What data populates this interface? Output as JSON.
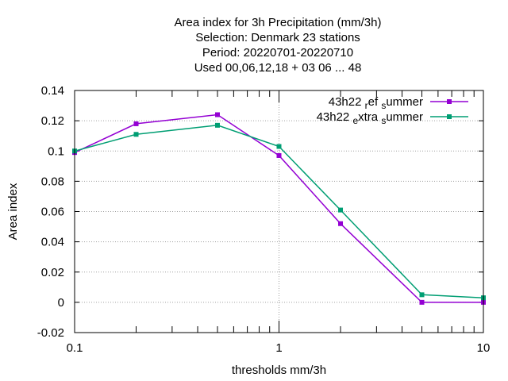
{
  "chart_data": {
    "type": "line",
    "title_lines": [
      "Area index  for 3h Precipitation (mm/3h)",
      "Selection: Denmark     23 stations",
      "Period: 20220701-20220710",
      "Used  00,06,12,18  + 03 06 ... 48"
    ],
    "xlabel": "thresholds mm/3h",
    "ylabel": "Area index",
    "x_scale": "log",
    "xlim": [
      0.1,
      10
    ],
    "ylim": [
      -0.02,
      0.14
    ],
    "x_ticks": [
      0.1,
      1,
      10
    ],
    "x_tick_labels": [
      "0.1",
      "1",
      "10"
    ],
    "y_ticks": [
      -0.02,
      0,
      0.02,
      0.04,
      0.06,
      0.08,
      0.1,
      0.12,
      0.14
    ],
    "y_tick_labels": [
      "-0.02",
      "0",
      "0.02",
      "0.04",
      "0.06",
      "0.08",
      "0.1",
      "0.12",
      "0.14"
    ],
    "grid": true,
    "legend_position": "top-right",
    "x": [
      0.1,
      0.2,
      0.5,
      1,
      2,
      5,
      10
    ],
    "series": [
      {
        "name": "43h22 ref summer",
        "legend_parts": [
          [
            "43h22 ",
            ""
          ],
          [
            "r",
            "sub"
          ],
          [
            "ef ",
            ""
          ],
          [
            "s",
            "sub"
          ],
          [
            "ummer",
            ""
          ]
        ],
        "color": "#9400d3",
        "values": [
          0.099,
          0.118,
          0.124,
          0.097,
          0.052,
          0.0,
          0.0
        ]
      },
      {
        "name": "43h22 extra summer",
        "legend_parts": [
          [
            "43h22 ",
            ""
          ],
          [
            "e",
            "sub"
          ],
          [
            "xtra ",
            ""
          ],
          [
            "s",
            "sub"
          ],
          [
            "ummer",
            ""
          ]
        ],
        "color": "#009e73",
        "values": [
          0.1,
          0.111,
          0.117,
          0.103,
          0.061,
          0.005,
          0.003
        ]
      }
    ]
  }
}
